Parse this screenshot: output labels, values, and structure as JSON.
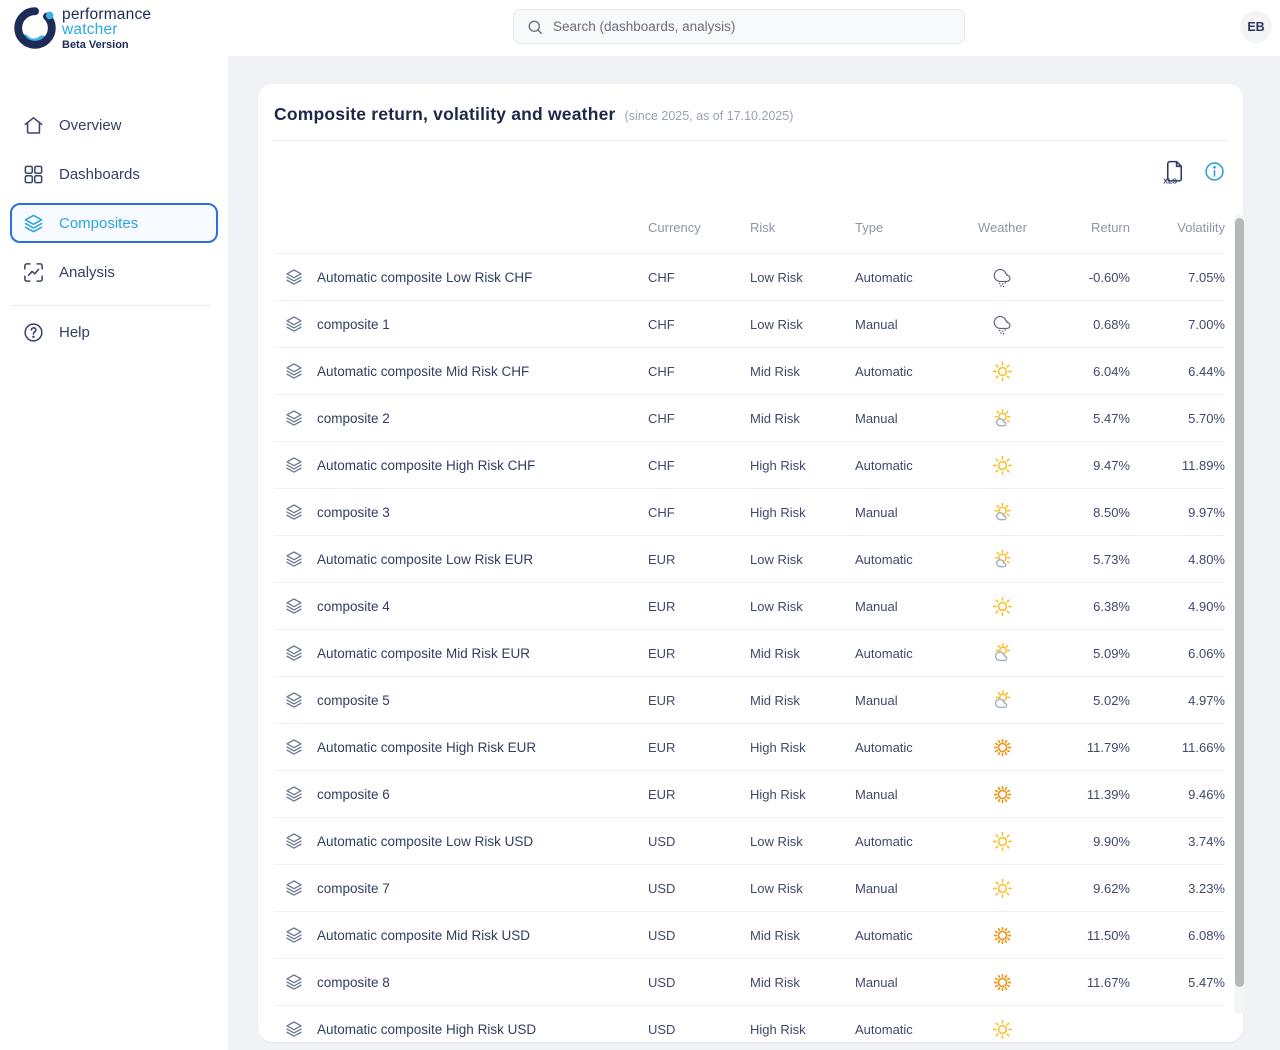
{
  "colors": {
    "accent_blue": "#2d9fd9",
    "active_border": "#2e6fe0",
    "navy": "#1e2749",
    "sun_yellow": "#fbc02d",
    "sun_orange": "#f2920e",
    "rain_slate": "#566377"
  },
  "logo": {
    "line1": "performance",
    "line2": "watcher",
    "badge": "Beta Version"
  },
  "topbar": {
    "search_placeholder": "Search (dashboards, analysis)",
    "avatar_initials": "EB"
  },
  "sidebar": {
    "items": [
      {
        "id": "overview",
        "label": "Overview",
        "icon": "home-icon",
        "active": false
      },
      {
        "id": "dashboards",
        "label": "Dashboards",
        "icon": "grid-icon",
        "active": false
      },
      {
        "id": "composites",
        "label": "Composites",
        "icon": "layers-icon",
        "active": true
      },
      {
        "id": "analysis",
        "label": "Analysis",
        "icon": "trend-icon",
        "active": false
      }
    ],
    "footer_items": [
      {
        "id": "help",
        "label": "Help",
        "icon": "help-icon",
        "active": false
      }
    ]
  },
  "main": {
    "title": "Composite return, volatility and weather",
    "subtitle": "(since 2025, as of 17.10.2025)",
    "toolbar": {
      "icons": [
        "xls-export-icon",
        "info-icon"
      ]
    },
    "table": {
      "columns": [
        "Currency",
        "Risk",
        "Type",
        "Weather",
        "Return",
        "Volatility"
      ],
      "rows": [
        {
          "name": "Automatic composite Low Risk CHF",
          "currency": "CHF",
          "risk": "Low Risk",
          "type": "Automatic",
          "weather": "rain",
          "return": "-0.60%",
          "volatility": "7.05%"
        },
        {
          "name": "composite 1",
          "currency": "CHF",
          "risk": "Low Risk",
          "type": "Manual",
          "weather": "rain",
          "return": "0.68%",
          "volatility": "7.00%"
        },
        {
          "name": "Automatic composite Mid Risk CHF",
          "currency": "CHF",
          "risk": "Mid Risk",
          "type": "Automatic",
          "weather": "sunny",
          "return": "6.04%",
          "volatility": "6.44%"
        },
        {
          "name": "composite 2",
          "currency": "CHF",
          "risk": "Mid Risk",
          "type": "Manual",
          "weather": "mostly-sunny",
          "return": "5.47%",
          "volatility": "5.70%"
        },
        {
          "name": "Automatic composite High Risk CHF",
          "currency": "CHF",
          "risk": "High Risk",
          "type": "Automatic",
          "weather": "sunny",
          "return": "9.47%",
          "volatility": "11.89%"
        },
        {
          "name": "composite 3",
          "currency": "CHF",
          "risk": "High Risk",
          "type": "Manual",
          "weather": "mostly-sunny",
          "return": "8.50%",
          "volatility": "9.97%"
        },
        {
          "name": "Automatic composite Low Risk EUR",
          "currency": "EUR",
          "risk": "Low Risk",
          "type": "Automatic",
          "weather": "mostly-sunny",
          "return": "5.73%",
          "volatility": "4.80%"
        },
        {
          "name": "composite 4",
          "currency": "EUR",
          "risk": "Low Risk",
          "type": "Manual",
          "weather": "sunny",
          "return": "6.38%",
          "volatility": "4.90%"
        },
        {
          "name": "Automatic composite Mid Risk EUR",
          "currency": "EUR",
          "risk": "Mid Risk",
          "type": "Automatic",
          "weather": "partly-cloudy",
          "return": "5.09%",
          "volatility": "6.06%"
        },
        {
          "name": "composite 5",
          "currency": "EUR",
          "risk": "Mid Risk",
          "type": "Manual",
          "weather": "partly-cloudy",
          "return": "5.02%",
          "volatility": "4.97%"
        },
        {
          "name": "Automatic composite High Risk EUR",
          "currency": "EUR",
          "risk": "High Risk",
          "type": "Automatic",
          "weather": "hot-sunny",
          "return": "11.79%",
          "volatility": "11.66%"
        },
        {
          "name": "composite 6",
          "currency": "EUR",
          "risk": "High Risk",
          "type": "Manual",
          "weather": "hot-sunny",
          "return": "11.39%",
          "volatility": "9.46%"
        },
        {
          "name": "Automatic composite Low Risk USD",
          "currency": "USD",
          "risk": "Low Risk",
          "type": "Automatic",
          "weather": "sunny",
          "return": "9.90%",
          "volatility": "3.74%"
        },
        {
          "name": "composite 7",
          "currency": "USD",
          "risk": "Low Risk",
          "type": "Manual",
          "weather": "sunny",
          "return": "9.62%",
          "volatility": "3.23%"
        },
        {
          "name": "Automatic composite Mid Risk USD",
          "currency": "USD",
          "risk": "Mid Risk",
          "type": "Automatic",
          "weather": "hot-sunny",
          "return": "11.50%",
          "volatility": "6.08%"
        },
        {
          "name": "composite 8",
          "currency": "USD",
          "risk": "Mid Risk",
          "type": "Manual",
          "weather": "hot-sunny",
          "return": "11.67%",
          "volatility": "5.47%"
        },
        {
          "name": "Automatic composite High Risk USD",
          "currency": "USD",
          "risk": "High Risk",
          "type": "Automatic",
          "weather": "sunny",
          "return": "",
          "volatility": ""
        }
      ]
    }
  }
}
